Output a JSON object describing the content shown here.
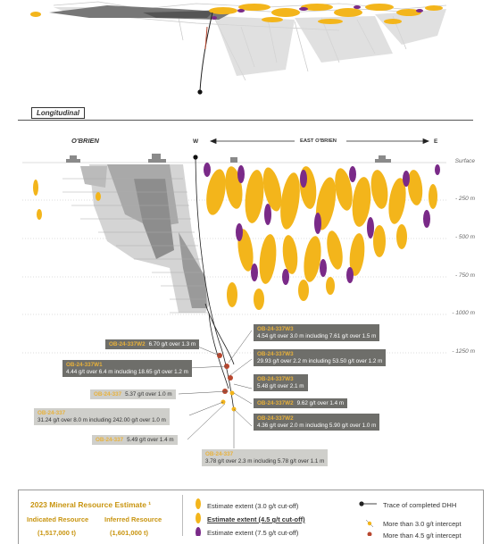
{
  "section_title": "Longitudinal",
  "header": {
    "obrien_label": "O'BRIEN",
    "west_label": "W",
    "east_label": "E",
    "east_obrien_label": "EAST O'BRIEN"
  },
  "depth_labels": [
    "Surface",
    "- 250 m",
    "- 500 m",
    "- 750 m",
    "- 1000 m",
    "- 1250 m"
  ],
  "intercepts_left": [
    {
      "hole": "OB-24-337W2",
      "text": "6.70 g/t over 1.3 m",
      "style": "dark"
    },
    {
      "hole": "OB-24-337W1",
      "text": "4.44 g/t over 6.4 m including 18.65 g/t over 1.2 m",
      "style": "dark"
    },
    {
      "hole": "OB-24-337",
      "text": "5.37 g/t over 1.0 m",
      "style": "light"
    },
    {
      "hole": "OB-24-337",
      "text": "31.24 g/t over 8.0 m including 242.00 g/t over 1.0 m",
      "style": "light"
    },
    {
      "hole": "OB-24-337",
      "text": "5.49 g/t over 1.4 m",
      "style": "light"
    }
  ],
  "intercepts_right": [
    {
      "hole": "OB-24-337W3",
      "text": "4.54 g/t over 3.0 m including 7.61 g/t over 1.5 m",
      "style": "dark"
    },
    {
      "hole": "OB-24-337W3",
      "text": "29.93 g/t over 2.2 m including 53.50 g/t over 1.2 m",
      "style": "dark"
    },
    {
      "hole": "OB-24-337W3",
      "text": "5.48 g/t over 2.1 m",
      "style": "dark"
    },
    {
      "hole": "OB-24-337W2",
      "text": "9.62 g/t over 1.4 m",
      "style": "dark"
    },
    {
      "hole": "OB-24-337W2",
      "text": "4.36 g/t over 2.0 m including 5.90 g/t over 1.0 m",
      "style": "dark"
    },
    {
      "hole": "OB-24-337",
      "text": "3.78 g/t over 2.3 m including 5.78 g/t over 1.1 m",
      "style": "light"
    }
  ],
  "legend": {
    "title": "2023 Mineral Resource Estimate ¹",
    "indicated_label": "Indicated Resource",
    "inferred_label": "Inferred Resource",
    "indicated_value": "(1,517,000 t)",
    "inferred_value": "(1,601,000 t)",
    "estimate_30": "Estimate extent (3.0  g/t cut-off)",
    "estimate_45": "Estimate extent (4.5  g/t cut-off)",
    "estimate_75": "Estimate extent (7.5 g/t cut-off)",
    "trace_dhh": "Trace of completed DHH",
    "more_30": "More than 3.0 g/t intercept",
    "more_45": "More than 4.5 g/t intercept"
  },
  "colors": {
    "gold": "#f3b51b",
    "purple": "#7a2a88",
    "grey_block": "#9e9e9e",
    "dark_tag": "#6e6e6a",
    "light_tag": "#cfcfcb",
    "hole_id": "#e8b13a",
    "intercept_red": "#b8472f"
  }
}
